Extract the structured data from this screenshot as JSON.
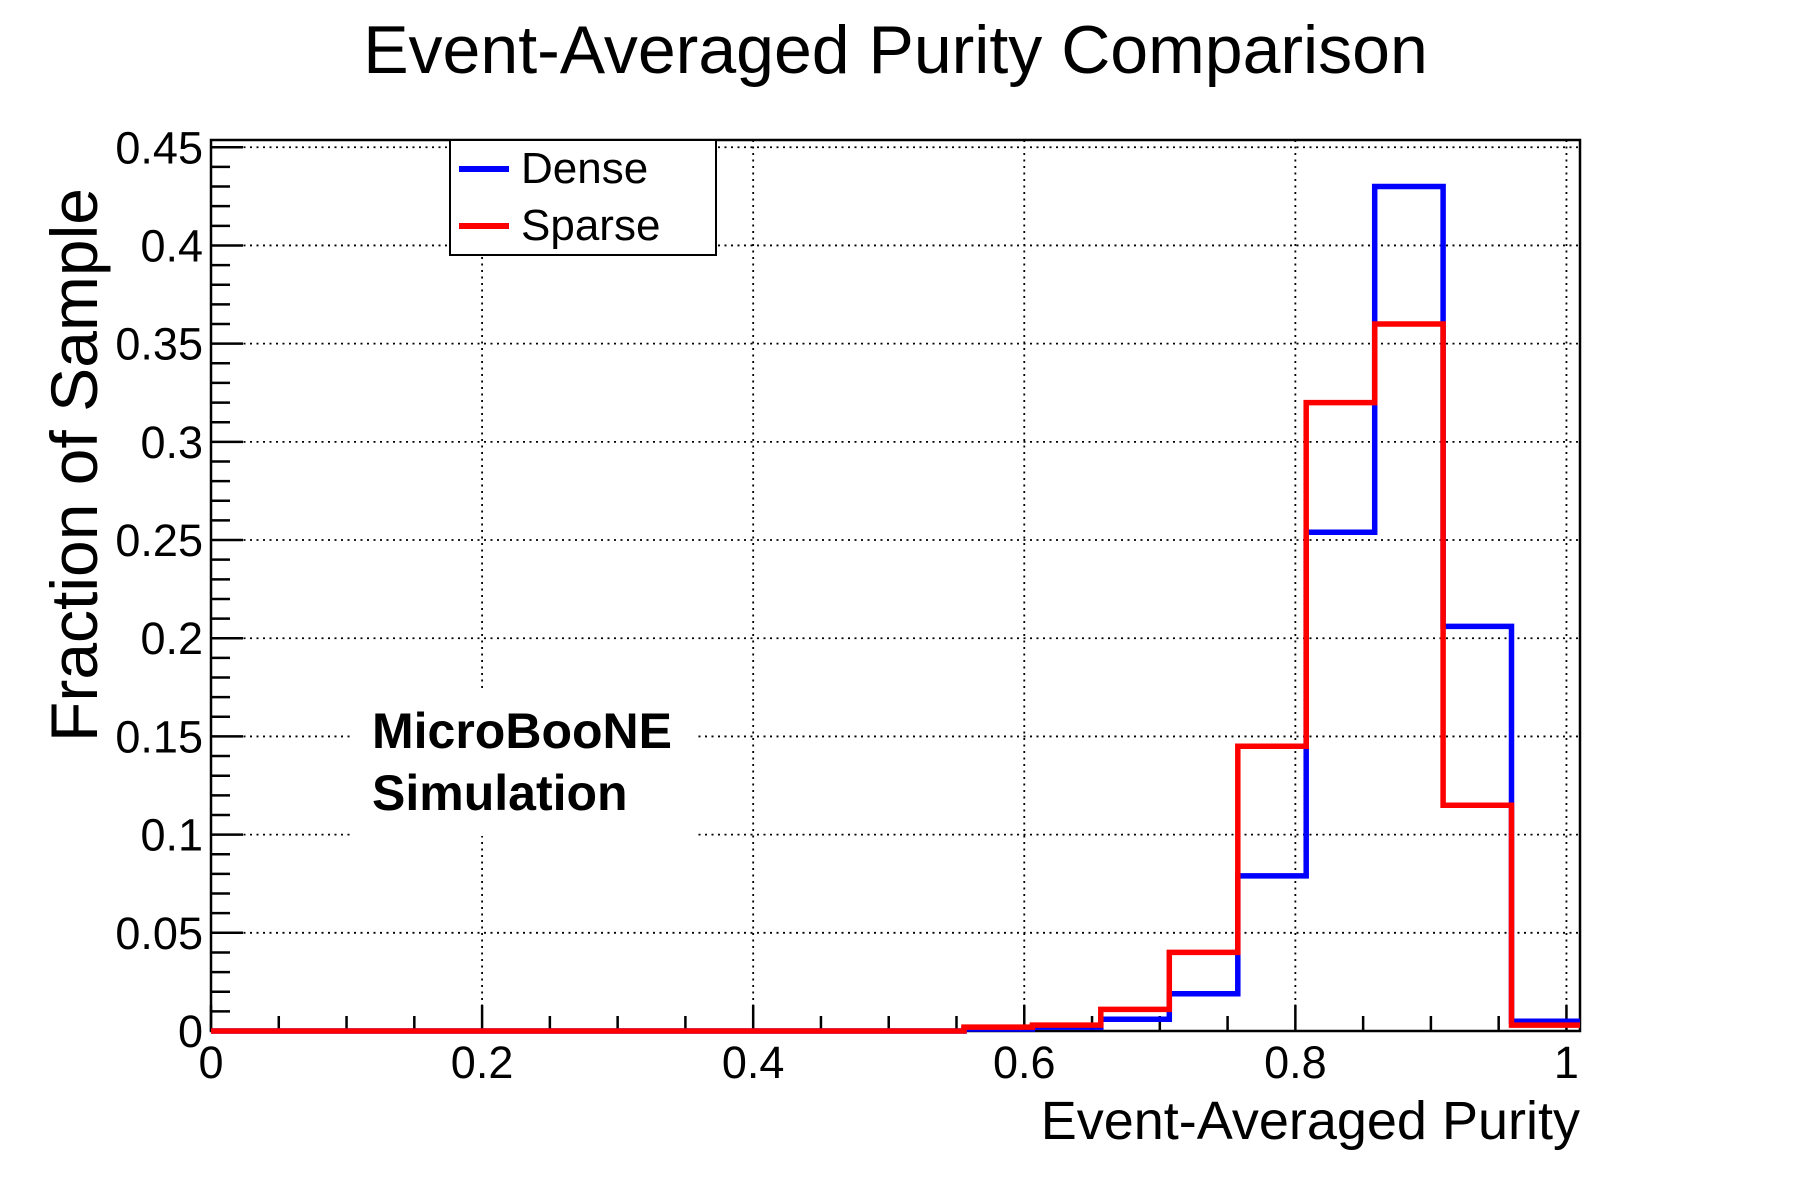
{
  "chart_data": {
    "type": "step-histogram",
    "title": "Event-Averaged Purity Comparison",
    "xlabel": "Event-Averaged Purity",
    "ylabel": "Fraction of Sample",
    "xlim": [
      0,
      1.01
    ],
    "ylim": [
      0,
      0.4537
    ],
    "grid": true,
    "legend_position": "top-left-inside",
    "annotation": [
      "MicroBooNE",
      "Simulation"
    ],
    "x_axis": {
      "ticks": [
        0,
        0.2,
        0.4,
        0.6,
        0.8,
        1
      ],
      "tick_labels": [
        "0",
        "0.2",
        "0.4",
        "0.6",
        "0.8",
        "1"
      ],
      "minor_tick_step": 0.05,
      "gridlines": [
        0.2,
        0.4,
        0.6,
        0.8,
        1
      ]
    },
    "y_axis": {
      "ticks": [
        0,
        0.05,
        0.1,
        0.15,
        0.2,
        0.25,
        0.3,
        0.35,
        0.4,
        0.45
      ],
      "tick_labels": [
        "0",
        "0.05",
        "0.1",
        "0.15",
        "0.2",
        "0.25",
        "0.3",
        "0.35",
        "0.4",
        "0.45"
      ],
      "minor_tick_step": 0.01,
      "gridlines": [
        0.05,
        0.1,
        0.15,
        0.2,
        0.25,
        0.3,
        0.35,
        0.4,
        0.45
      ]
    },
    "bin_edges": [
      0,
      0.0505,
      0.101,
      0.1515,
      0.202,
      0.2525,
      0.303,
      0.3535,
      0.404,
      0.4545,
      0.505,
      0.5555,
      0.606,
      0.6565,
      0.707,
      0.7575,
      0.808,
      0.8585,
      0.909,
      0.9595,
      1.01
    ],
    "series": [
      {
        "name": "Dense",
        "color": "#0000ff",
        "values": [
          0,
          0,
          0,
          0,
          0,
          0,
          0,
          0,
          0,
          0,
          0,
          0.001,
          0.002,
          0.006,
          0.019,
          0.079,
          0.254,
          0.43,
          0.206,
          0.005
        ]
      },
      {
        "name": "Sparse",
        "color": "#ff0000",
        "values": [
          0,
          0,
          0,
          0,
          0,
          0,
          0,
          0,
          0,
          0,
          0,
          0.002,
          0.003,
          0.011,
          0.04,
          0.145,
          0.32,
          0.36,
          0.115,
          0.003
        ]
      }
    ]
  }
}
